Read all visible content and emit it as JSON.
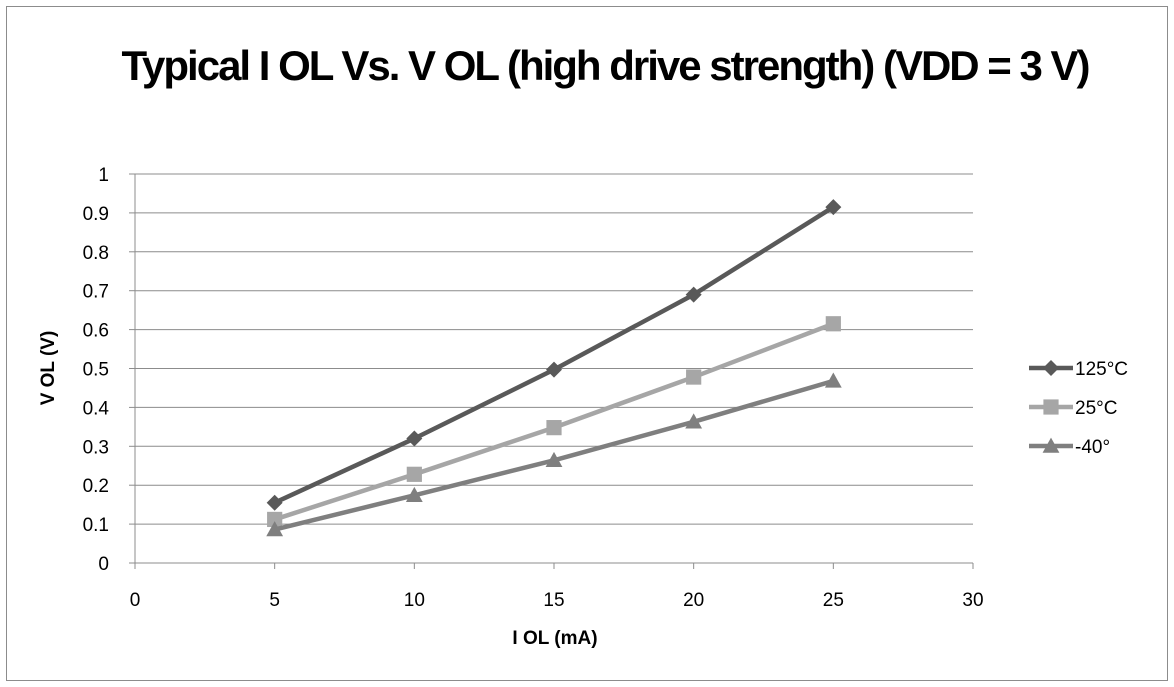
{
  "chart_data": {
    "type": "line",
    "title": "Typical I OL Vs. V OL (high drive strength) (VDD = 3 V)",
    "xlabel": "I OL (mA)",
    "ylabel": "V OL (V)",
    "xlim": [
      0,
      30
    ],
    "ylim": [
      0,
      1
    ],
    "xticks": [
      "0",
      "5",
      "10",
      "15",
      "20",
      "25",
      "30"
    ],
    "yticks": [
      "0",
      "0.1",
      "0.2",
      "0.3",
      "0.4",
      "0.5",
      "0.6",
      "0.7",
      "0.8",
      "0.9",
      "1"
    ],
    "grid": "horizontal",
    "legend_position": "right",
    "x": [
      5,
      10,
      15,
      20,
      25
    ],
    "series": [
      {
        "name": "125°C",
        "values": [
          0.155,
          0.32,
          0.497,
          0.69,
          0.915
        ],
        "color": "#595959",
        "marker": "diamond"
      },
      {
        "name": "25°C",
        "values": [
          0.112,
          0.228,
          0.348,
          0.478,
          0.615
        ],
        "color": "#a6a6a6",
        "marker": "square"
      },
      {
        "name": "-40°",
        "values": [
          0.086,
          0.174,
          0.264,
          0.363,
          0.468
        ],
        "color": "#7f7f7f",
        "marker": "triangle"
      }
    ]
  }
}
